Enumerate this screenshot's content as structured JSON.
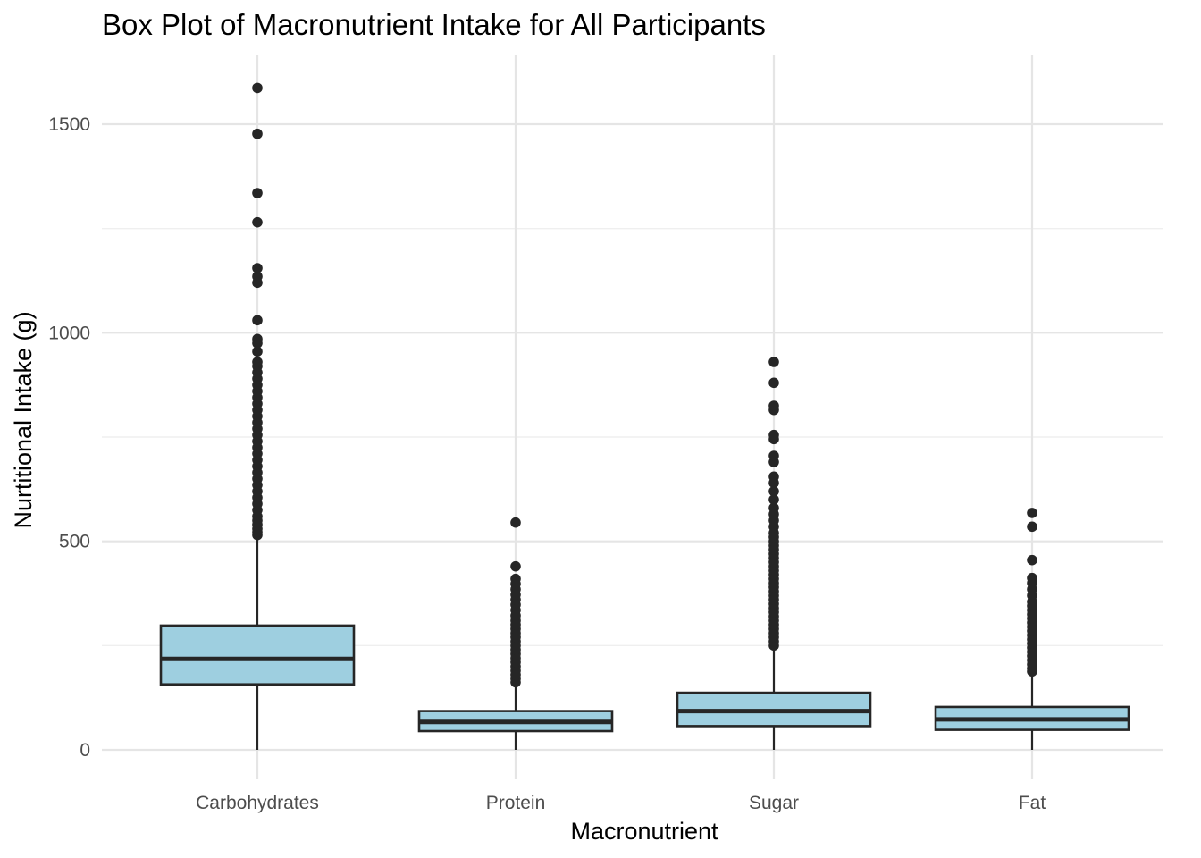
{
  "chart_data": {
    "type": "box",
    "title": "Box Plot of Macronutrient Intake for All Participants",
    "xlabel": "Macronutrient",
    "ylabel": "Nurtitional Intake (g)",
    "ylim": [
      -70,
      1670
    ],
    "yticks": [
      0,
      500,
      1000,
      1500
    ],
    "grid": true,
    "colors": {
      "box_fill": "#9ecfe0",
      "box_stroke": "#262626",
      "point": "#262626",
      "grid_major": "#e5e5e5",
      "grid_minor": "#efefef"
    },
    "categories": [
      "Carbohydrates",
      "Protein",
      "Sugar",
      "Fat"
    ],
    "boxes": [
      {
        "category": "Carbohydrates",
        "whisker_low": 0,
        "q1": 157,
        "median": 218,
        "q3": 298,
        "whisker_high": 510,
        "outliers": [
          515,
          522,
          530,
          540,
          550,
          560,
          575,
          590,
          605,
          620,
          635,
          650,
          665,
          680,
          695,
          710,
          725,
          740,
          755,
          770,
          785,
          800,
          815,
          830,
          845,
          860,
          875,
          890,
          905,
          920,
          930,
          955,
          975,
          985,
          1030,
          1120,
          1135,
          1155,
          1265,
          1335,
          1477,
          1587
        ]
      },
      {
        "category": "Protein",
        "whisker_low": 0,
        "q1": 45,
        "median": 67,
        "q3": 93,
        "whisker_high": 158,
        "outliers": [
          162,
          170,
          180,
          190,
          200,
          210,
          220,
          230,
          240,
          250,
          260,
          270,
          280,
          290,
          300,
          310,
          322,
          335,
          348,
          360,
          372,
          385,
          398,
          410,
          440,
          545
        ]
      },
      {
        "category": "Sugar",
        "whisker_low": 0,
        "q1": 57,
        "median": 93,
        "q3": 137,
        "whisker_high": 245,
        "outliers": [
          250,
          260,
          270,
          280,
          290,
          300,
          310,
          320,
          330,
          340,
          350,
          360,
          370,
          380,
          390,
          400,
          410,
          420,
          430,
          440,
          450,
          460,
          470,
          480,
          490,
          500,
          510,
          520,
          535,
          550,
          565,
          580,
          600,
          620,
          640,
          655,
          690,
          705,
          745,
          755,
          815,
          825,
          880,
          930
        ]
      },
      {
        "category": "Fat",
        "whisker_low": 0,
        "q1": 48,
        "median": 73,
        "q3": 103,
        "whisker_high": 183,
        "outliers": [
          188,
          195,
          205,
          215,
          225,
          235,
          245,
          255,
          265,
          275,
          285,
          295,
          305,
          315,
          325,
          335,
          345,
          355,
          370,
          385,
          400,
          412,
          455,
          535,
          568
        ]
      }
    ]
  }
}
